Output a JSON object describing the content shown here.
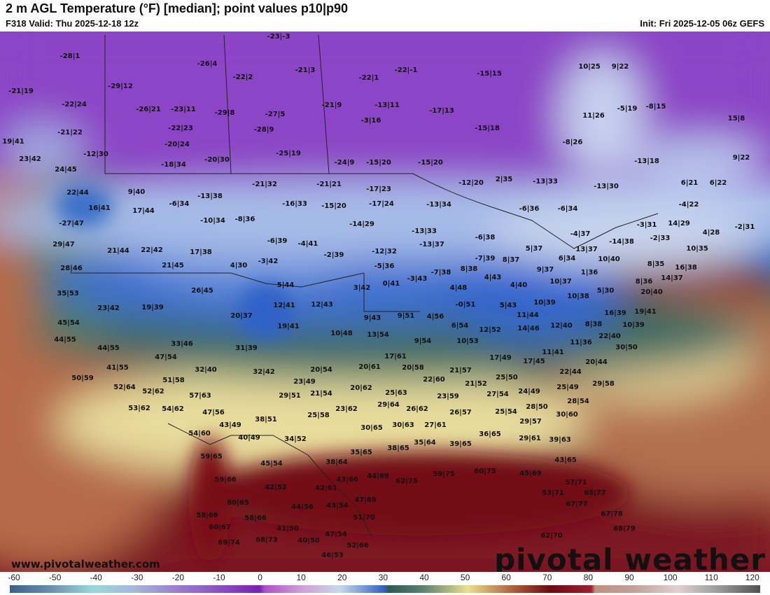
{
  "header": {
    "title": "2 m AGL Temperature (°F) [median]; point values p10|p90",
    "valid": "F318 Valid: Thu 2025-12-18 12z",
    "init": "Init: Fri 2025-12-05 06z GEFS"
  },
  "watermark": {
    "url": "www.pivotalweather.com",
    "logo": "pivotal weather"
  },
  "colorbar": {
    "unit": "°F",
    "ticks": [
      "-60",
      "-50",
      "-40",
      "-30",
      "-20",
      "-10",
      "0",
      "10",
      "20",
      "30",
      "40",
      "50",
      "60",
      "70",
      "80",
      "90",
      "100",
      "110",
      "120"
    ]
  },
  "point_values": [
    "-28|1",
    "-26|4",
    "-23|-3",
    "-21|3",
    "-22|2",
    "-22|1",
    "-22|-1",
    "-15|15",
    "10|25",
    "9|22",
    "-21|19",
    "-29|12",
    "-22|24",
    "-26|21",
    "-23|11",
    "-29|8",
    "-27|5",
    "-21|9",
    "-13|11",
    "-17|13",
    "-3|16",
    "11|26",
    "-5|19",
    "-8|15",
    "15|8",
    "-21|22",
    "-22|23",
    "-28|9",
    "-15|18",
    "-8|26",
    "19|41",
    "-20|24",
    "-25|19",
    "-12|30",
    "23|42",
    "9|22",
    "-13|18",
    "-20|30",
    "-24|9",
    "-15|20",
    "-15|20",
    "-18|34",
    "24|45",
    "-12|20",
    "2|35",
    "-13|33",
    "-13|30",
    "6|21",
    "6|22",
    "22|44",
    "9|40",
    "-13|38",
    "-21|32",
    "-21|21",
    "-17|23",
    "-16|33",
    "-15|20",
    "-17|24",
    "-13|34",
    "-4|22",
    "16|41",
    "17|44",
    "-6|34",
    "-6|36",
    "-6|34",
    "-3|31",
    "14|29",
    "-2|31",
    "-27|47",
    "-10|34",
    "-8|36",
    "-14|29",
    "-13|33",
    "-4|37",
    "4|28",
    "-2|33",
    "-14|38",
    "29|47",
    "-6|39",
    "-4|41",
    "-6|38",
    "-13|37",
    "-12|32",
    "21|44",
    "22|42",
    "17|38",
    "-2|39",
    "5|37",
    "8|37",
    "-7|39",
    "13|37",
    "10|40",
    "10|35",
    "21|45",
    "4|30",
    "-3|42",
    "-5|36",
    "-7|38",
    "8|38",
    "-3|43",
    "9|37",
    "6|34",
    "1|36",
    "8|35",
    "16|38",
    "28|46",
    "4|43",
    "10|37",
    "8|36",
    "14|37",
    "3|42",
    "0|41",
    "5|44",
    "4|48",
    "4|40",
    "5|30",
    "10|38",
    "26|45",
    "35|53",
    "20|40",
    "-0|51",
    "5|43",
    "10|39",
    "23|42",
    "19|39",
    "12|41",
    "12|43",
    "4|56",
    "11|44",
    "16|39",
    "19|41",
    "20|37",
    "9|43",
    "9|51",
    "6|54",
    "10|39",
    "45|54",
    "19|41",
    "10|48",
    "13|54",
    "12|52",
    "14|46",
    "12|40",
    "8|38",
    "22|40",
    "44|55",
    "44|55",
    "33|46",
    "31|39",
    "9|54",
    "10|53",
    "11|36",
    "30|50",
    "11|41",
    "17|61",
    "17|49",
    "17|45",
    "47|54",
    "41|55",
    "32|40",
    "32|42",
    "20|54",
    "20|61",
    "20|58",
    "20|44",
    "21|57",
    "22|44",
    "50|59",
    "51|58",
    "23|49",
    "22|60",
    "21|52",
    "25|50",
    "29|58",
    "52|64",
    "52|62",
    "57|63",
    "29|51",
    "21|54",
    "20|62",
    "25|63",
    "23|59",
    "27|54",
    "24|49",
    "25|49",
    "29|64",
    "28|54",
    "53|62",
    "54|62",
    "47|56",
    "23|62",
    "26|62",
    "26|57",
    "25|54",
    "28|50",
    "25|58",
    "38|51",
    "43|49",
    "29|57",
    "30|60",
    "30|65",
    "30|63",
    "27|61",
    "54|60",
    "40|49",
    "34|52",
    "36|65",
    "29|61",
    "39|63",
    "35|64",
    "39|65",
    "38|65",
    "35|65",
    "59|65",
    "38|64",
    "45|54",
    "43|65",
    "62|75",
    "59|75",
    "60|75",
    "43|66",
    "44|69",
    "59|66",
    "42|52",
    "42|61",
    "45|69",
    "57|71",
    "47|69",
    "60|65",
    "44|56",
    "43|54",
    "53|71",
    "65|77",
    "58|66",
    "58|66",
    "51|70",
    "67|77",
    "60|67",
    "42|50",
    "47|54",
    "67|78",
    "68|79",
    "69|74",
    "68|73",
    "40|50",
    "52|66",
    "46|53",
    "62|70"
  ]
}
